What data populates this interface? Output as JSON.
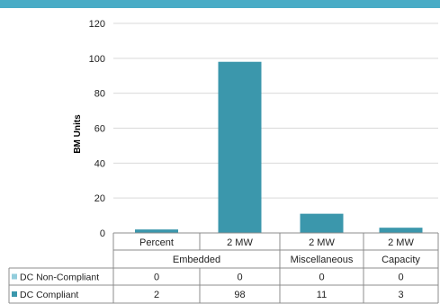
{
  "colors": {
    "header_bar": "#49acc6",
    "non_compliant": "#92cddc",
    "compliant": "#3b97ac",
    "grid": "#d9d9d9",
    "table_border": "#8c8c8c"
  },
  "chart_data": {
    "type": "bar",
    "ylabel": "BM Units",
    "ylim": [
      0,
      120
    ],
    "yticks": [
      0,
      20,
      40,
      60,
      80,
      100,
      120
    ],
    "grid": true,
    "legend": "table-left",
    "groups": [
      {
        "label": "Embedded",
        "categories": [
          "Percent",
          "2 MW"
        ]
      },
      {
        "label": "Miscellaneous",
        "categories": [
          "2 MW"
        ]
      },
      {
        "label": "Capacity",
        "categories": [
          "2 MW"
        ]
      }
    ],
    "categories": [
      "Percent",
      "2 MW",
      "2 MW",
      "2 MW"
    ],
    "series": [
      {
        "name": "DC Non-Compliant",
        "values": [
          0,
          0,
          0,
          0
        ],
        "color": "#92cddc"
      },
      {
        "name": "DC Compliant",
        "values": [
          2,
          98,
          11,
          3
        ],
        "color": "#3b97ac"
      }
    ]
  }
}
